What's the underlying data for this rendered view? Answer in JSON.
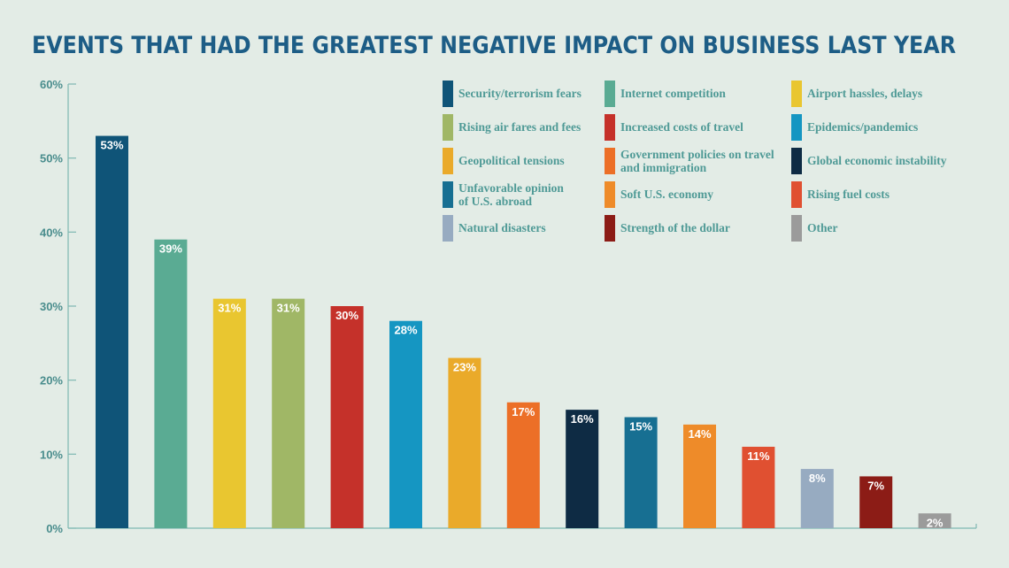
{
  "chart_data": {
    "type": "bar",
    "title": "EVENTS THAT HAD THE GREATEST NEGATIVE IMPACT ON BUSINESS LAST YEAR",
    "xlabel": "",
    "ylabel": "",
    "ylim": [
      0,
      60
    ],
    "yticks": [
      {
        "value": 0,
        "label": "0%"
      },
      {
        "value": 10,
        "label": "10%"
      },
      {
        "value": 20,
        "label": "20%"
      },
      {
        "value": 30,
        "label": "30%"
      },
      {
        "value": 40,
        "label": "40%"
      },
      {
        "value": 50,
        "label": "50%"
      },
      {
        "value": 60,
        "label": "60%"
      }
    ],
    "legend_position": "top-right",
    "bars": [
      {
        "category": "Security/terrorism fears",
        "value": 53,
        "label": "53%",
        "color": "#0f5478"
      },
      {
        "category": "Internet competition",
        "value": 39,
        "label": "39%",
        "color": "#5aab93"
      },
      {
        "category": "Airport hassles, delays",
        "value": 31,
        "label": "31%",
        "color": "#e9c630"
      },
      {
        "category": "Rising air fares and fees",
        "value": 31,
        "label": "31%",
        "color": "#a0b766"
      },
      {
        "category": "Increased costs of travel",
        "value": 30,
        "label": "30%",
        "color": "#c5312a"
      },
      {
        "category": "Epidemics/pandemics",
        "value": 28,
        "label": "28%",
        "color": "#1596c2"
      },
      {
        "category": "Geopolitical tensions",
        "value": 23,
        "label": "23%",
        "color": "#eaaa2a"
      },
      {
        "category": "Government policies on travel and immigration",
        "value": 17,
        "label": "17%",
        "color": "#ec6f27"
      },
      {
        "category": "Global economic instability",
        "value": 16,
        "label": "16%",
        "color": "#0e2b44"
      },
      {
        "category": "Unfavorable opinion of U.S. abroad",
        "value": 15,
        "label": "15%",
        "color": "#176f92"
      },
      {
        "category": "Soft U.S. economy",
        "value": 14,
        "label": "14%",
        "color": "#ee8b29"
      },
      {
        "category": "Rising fuel costs",
        "value": 11,
        "label": "11%",
        "color": "#e05031"
      },
      {
        "category": "Natural disasters",
        "value": 8,
        "label": "8%",
        "color": "#97abc1"
      },
      {
        "category": "Strength of the dollar",
        "value": 7,
        "label": "7%",
        "color": "#8c1c16"
      },
      {
        "category": "Other",
        "value": 2,
        "label": "2%",
        "color": "#9b9b9b"
      }
    ],
    "legend": [
      {
        "lines": [
          "Security/terrorism fears"
        ],
        "color": "#0f5478"
      },
      {
        "lines": [
          "Internet competition"
        ],
        "color": "#5aab93"
      },
      {
        "lines": [
          "Airport hassles, delays"
        ],
        "color": "#e9c630"
      },
      {
        "lines": [
          "Rising air fares and fees"
        ],
        "color": "#a0b766"
      },
      {
        "lines": [
          "Increased costs of travel"
        ],
        "color": "#c5312a"
      },
      {
        "lines": [
          "Epidemics/pandemics"
        ],
        "color": "#1596c2"
      },
      {
        "lines": [
          "Geopolitical tensions"
        ],
        "color": "#eaaa2a"
      },
      {
        "lines": [
          "Government policies on travel",
          "and immigration"
        ],
        "color": "#ec6f27"
      },
      {
        "lines": [
          "Global economic instability"
        ],
        "color": "#0e2b44"
      },
      {
        "lines": [
          "Unfavorable opinion",
          "of U.S. abroad"
        ],
        "color": "#176f92"
      },
      {
        "lines": [
          "Soft U.S. economy"
        ],
        "color": "#ee8b29"
      },
      {
        "lines": [
          "Rising fuel costs"
        ],
        "color": "#e05031"
      },
      {
        "lines": [
          "Natural disasters"
        ],
        "color": "#97abc1"
      },
      {
        "lines": [
          "Strength of the dollar"
        ],
        "color": "#8c1c16"
      },
      {
        "lines": [
          "Other"
        ],
        "color": "#9b9b9b"
      }
    ]
  }
}
